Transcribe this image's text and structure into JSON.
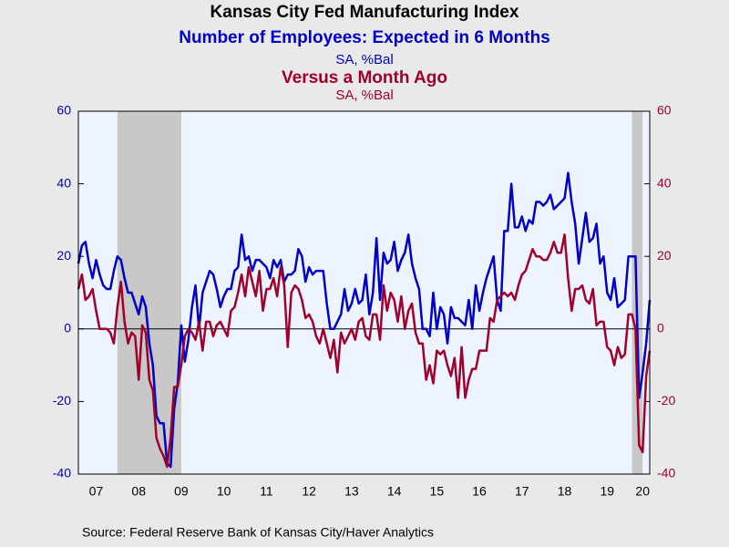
{
  "chart_data": {
    "type": "line",
    "title": "Kansas City Fed Manufacturing Index",
    "subtitles": [
      {
        "text": "Number of Employees: Expected in 6 Months",
        "color": "#0000c8",
        "bold": true
      },
      {
        "text": "SA, %Bal",
        "color": "#0000c8",
        "bold": false
      },
      {
        "text": "Versus a Month Ago",
        "color": "#a0002a",
        "bold": true
      },
      {
        "text": "SA, %Bal",
        "color": "#a0002a",
        "bold": false
      }
    ],
    "source": "Source:  Federal Reserve Bank of Kansas City/Haver Analytics",
    "categories": [
      null,
      null,
      null,
      null,
      null,
      "07",
      null,
      null,
      null,
      null,
      null,
      null,
      null,
      null,
      null,
      null,
      null,
      "08",
      null,
      null,
      null,
      null,
      null,
      null,
      null,
      null,
      null,
      null,
      null,
      "09",
      null,
      null,
      null,
      null,
      null,
      null,
      null,
      null,
      null,
      null,
      null,
      "10",
      null,
      null,
      null,
      null,
      null,
      null,
      null,
      null,
      null,
      null,
      null,
      "11",
      null,
      null,
      null,
      null,
      null,
      null,
      null,
      null,
      null,
      null,
      null,
      "12",
      null,
      null,
      null,
      null,
      null,
      null,
      null,
      null,
      null,
      null,
      null,
      "13",
      null,
      null,
      null,
      null,
      null,
      null,
      null,
      null,
      null,
      null,
      null,
      "14",
      null,
      null,
      null,
      null,
      null,
      null,
      null,
      null,
      null,
      null,
      null,
      "15",
      null,
      null,
      null,
      null,
      null,
      null,
      null,
      null,
      null,
      null,
      null,
      "16",
      null,
      null,
      null,
      null,
      null,
      null,
      null,
      null,
      null,
      null,
      null,
      "17",
      null,
      null,
      null,
      null,
      null,
      null,
      null,
      null,
      null,
      null,
      null,
      "18",
      null,
      null,
      null,
      null,
      null,
      null,
      null,
      null,
      null,
      null,
      null,
      "19",
      null,
      null,
      null,
      null,
      null,
      null,
      null,
      null,
      null,
      "20",
      null,
      null
    ],
    "recessions": [
      {
        "start": 11,
        "end": 29
      },
      {
        "start": 156,
        "end": 159
      }
    ],
    "series": [
      {
        "name": "Number of Employees: Expected in 6 Months",
        "color": "#0000c8",
        "values": [
          18,
          23,
          24,
          18,
          14,
          19,
          15,
          12,
          11,
          11,
          16,
          20,
          19,
          14,
          10,
          10,
          7,
          4,
          9,
          6,
          -4,
          -10,
          -24,
          -26,
          -26,
          -37,
          -38,
          -22,
          -15,
          1,
          -9,
          -3,
          6,
          12,
          0,
          10,
          13,
          16,
          15,
          11,
          6,
          9,
          11,
          11,
          16,
          17,
          26,
          19,
          20,
          16,
          19,
          19,
          18,
          17,
          14,
          19,
          17,
          19,
          13,
          15,
          15,
          16,
          22,
          20,
          13,
          17,
          15,
          16,
          16,
          16,
          7,
          0,
          0,
          2,
          4,
          11,
          5,
          7,
          11,
          7,
          8,
          15,
          4,
          10,
          25,
          8,
          21,
          18,
          19,
          24,
          16,
          19,
          21,
          26,
          18,
          14,
          11,
          0,
          0,
          -2,
          10,
          0,
          6,
          4,
          -4,
          6,
          3,
          3,
          2,
          1,
          8,
          0,
          12,
          5,
          10,
          14,
          17,
          20,
          8,
          5,
          27,
          27,
          40,
          28,
          28,
          31,
          27,
          30,
          29,
          35,
          35,
          34,
          35,
          37,
          33,
          34,
          35,
          36,
          43,
          35,
          29,
          18,
          25,
          32,
          24,
          25,
          29,
          18,
          20,
          10,
          8,
          14,
          6,
          7,
          8,
          20,
          20,
          20,
          -19,
          -12,
          -4,
          8
        ]
      },
      {
        "name": "Versus a Month Ago",
        "color": "#a0002a",
        "axis": "y2",
        "values": [
          11,
          15,
          8,
          9,
          11,
          5,
          0,
          0,
          0,
          -1,
          -4,
          6,
          13,
          2,
          -4,
          -1,
          -2,
          -14,
          1,
          -1,
          -14,
          -17,
          -30,
          -33,
          -35,
          -38,
          -30,
          -16,
          -16,
          -10,
          -2,
          0,
          -1,
          -3,
          2,
          -6,
          2,
          2,
          -2,
          1,
          2,
          0,
          -2,
          5,
          6,
          10,
          15,
          9,
          17,
          13,
          9,
          16,
          5,
          11,
          11,
          14,
          9,
          17,
          12,
          -5,
          10,
          12,
          11,
          8,
          3,
          4,
          2,
          -2,
          -4,
          0,
          -4,
          -8,
          -3,
          -12,
          -1,
          -4,
          -2,
          0,
          -3,
          2,
          3,
          -2,
          -3,
          4,
          4,
          -3,
          12,
          5,
          10,
          8,
          2,
          9,
          0,
          5,
          7,
          -1,
          -4,
          -4,
          -14,
          -10,
          -15,
          -6,
          -7,
          -6,
          -10,
          -13,
          -8,
          -19,
          -5,
          -19,
          -14,
          -11,
          -11,
          -6,
          -6,
          -6,
          3,
          2,
          8,
          9,
          10,
          9,
          10,
          8,
          12,
          15,
          16,
          19,
          22,
          20,
          20,
          19,
          19,
          21,
          24,
          21,
          21,
          26,
          14,
          5,
          11,
          11,
          12,
          8,
          7,
          11,
          1,
          2,
          2,
          -5,
          -6,
          -10,
          -5,
          -8,
          -7,
          4,
          4,
          0,
          -32,
          -34,
          -13,
          -6
        ]
      }
    ],
    "ylim": [
      -40,
      60
    ],
    "yticks": [
      -40,
      -20,
      0,
      20,
      40,
      60
    ],
    "y2lim": [
      -40,
      60
    ],
    "y2ticks": [
      -40,
      -20,
      0,
      20,
      40,
      60
    ]
  }
}
